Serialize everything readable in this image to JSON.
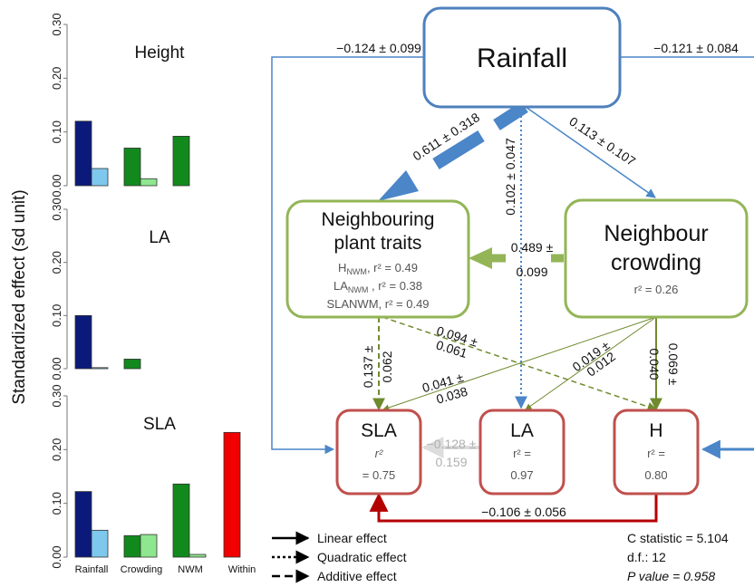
{
  "y_axis_label": "Standardized effect (sd unit)",
  "categories": [
    "Rainfall",
    "Crowding",
    "NWM",
    "Within"
  ],
  "chart_data": [
    {
      "type": "bar",
      "title": "Height",
      "categories": [
        "Rainfall",
        "Crowding",
        "NWM",
        "Within"
      ],
      "ylim": [
        0,
        0.3
      ],
      "yticks": [
        "0.00",
        "0.10",
        "0.20",
        "0.30"
      ],
      "series": [
        {
          "values": [
            0.12,
            0.07,
            0.092,
            null
          ],
          "colors": [
            "#0b1a7a",
            "#12891d",
            "#12891d",
            "#f00000"
          ]
        },
        {
          "values": [
            0.032,
            0.013,
            null,
            null
          ],
          "colors": [
            "#7ec8ee",
            "#8ee68e",
            "#8ee68e",
            null
          ]
        }
      ]
    },
    {
      "type": "bar",
      "title": "LA",
      "categories": [
        "Rainfall",
        "Crowding",
        "NWM",
        "Within"
      ],
      "ylim": [
        0,
        0.3
      ],
      "yticks": [
        "0.00",
        "0.10",
        "0.20",
        "0.30"
      ],
      "series": [
        {
          "values": [
            0.1,
            0.018,
            null,
            null
          ],
          "colors": [
            "#0b1a7a",
            "#12891d",
            "#12891d",
            "#f00000"
          ]
        },
        {
          "values": [
            0.002,
            null,
            null,
            null
          ],
          "colors": [
            "#7ec8ee",
            "#8ee68e",
            "#8ee68e",
            null
          ]
        }
      ]
    },
    {
      "type": "bar",
      "title": "SLA",
      "categories": [
        "Rainfall",
        "Crowding",
        "NWM",
        "Within"
      ],
      "ylim": [
        0,
        0.3
      ],
      "yticks": [
        "0.00",
        "0.10",
        "0.20",
        "0.30"
      ],
      "series": [
        {
          "values": [
            0.122,
            0.04,
            0.136,
            0.232
          ],
          "colors": [
            "#0b1a7a",
            "#12891d",
            "#12891d",
            "#f00000"
          ]
        },
        {
          "values": [
            0.05,
            0.042,
            0.005,
            null
          ],
          "colors": [
            "#7ec8ee",
            "#8ee68e",
            "#8ee68e",
            null
          ]
        }
      ]
    }
  ],
  "diagram": {
    "rainfall": {
      "label": "Rainfall",
      "color": "#4e81bd"
    },
    "neighbouring_traits": {
      "line1": "Neighbouring",
      "line2": "plant traits",
      "stats": [
        {
          "main": "H",
          "sub": "NWM",
          "rest": ", r² = 0.49"
        },
        {
          "main": "LA",
          "sub": "NWM",
          "rest": " , r² = 0.38"
        },
        {
          "main": "SLANWM, r² = 0.49",
          "sub": "",
          "rest": ""
        }
      ],
      "color": "#93b557"
    },
    "crowding": {
      "line1": "Neighbour",
      "line2": "crowding",
      "r2": "r² = 0.26",
      "color": "#93b557"
    },
    "sla": {
      "label": "SLA",
      "r2_line1": "r²",
      "r2_line2": "= 0.75",
      "color": "#c0504d"
    },
    "la": {
      "label": "LA",
      "r2_line1": "r² =",
      "r2_line2": "0.97",
      "color": "#c0504d"
    },
    "h": {
      "label": "H",
      "r2_line1": "r² =",
      "r2_line2": "0.80",
      "color": "#c0504d"
    },
    "paths": {
      "rain_sla": "−0.124 ± 0.099",
      "rain_h": "−0.121 ± 0.084",
      "rain_traits": "0.611 ± 0.318",
      "rain_la": "0.102 ± 0.047",
      "rain_crowding": "0.113 ± 0.107",
      "crowding_traits_1": "0.489 ±",
      "crowding_traits_2": "0.099",
      "traits_sla_1": "0.137 ±",
      "traits_sla_2": "0.062",
      "traits_h_1": "0.094 ±",
      "traits_h_2": "0.061",
      "crowd_sla_1": "0.041 ±",
      "crowd_sla_2": "0.038",
      "crowd_la_1": "0.019 ±",
      "crowd_la_2": "0.012",
      "crowd_h_1": "0.069 ±",
      "crowd_h_2": "0.040",
      "la_sla_1": "−0.128 ±",
      "la_sla_2": "0.159",
      "h_sla": "−0.106 ± 0.056"
    }
  },
  "legend": {
    "linear": "Linear effect",
    "quadratic": "Quadratic effect",
    "additive": "Additive effect"
  },
  "stats": {
    "c_statistic": "C statistic = 5.104",
    "df": "d.f.: 12",
    "p_value": "P value = 0.958"
  },
  "colors": {
    "rain_dark": "#0b1a7a",
    "rain_light": "#7ec8ee",
    "crowd_dark": "#12891d",
    "crowd_light": "#8ee68e",
    "within": "#f00000",
    "arrow_blue": "#4a86c8",
    "arrow_green": "#6f8b2e",
    "arrow_red": "#b30000"
  }
}
